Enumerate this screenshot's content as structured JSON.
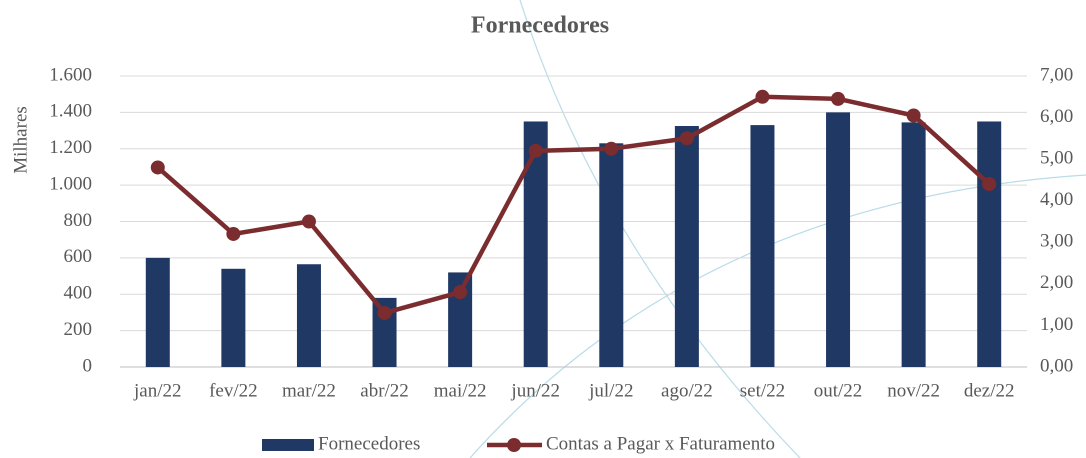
{
  "chart_data": {
    "type": "bar-line",
    "title": "Fornecedores",
    "y_label": "Milhares",
    "categories": [
      "jan/22",
      "fev/22",
      "mar/22",
      "abr/22",
      "mai/22",
      "jun/22",
      "jul/22",
      "ago/22",
      "set/22",
      "out/22",
      "nov/22",
      "dez/22"
    ],
    "series": [
      {
        "name": "Fornecedores",
        "type": "bar",
        "color": "#1f3864",
        "values": [
          600,
          540,
          565,
          380,
          520,
          1350,
          1230,
          1325,
          1330,
          1400,
          1345,
          1350
        ]
      },
      {
        "name": "Contas a Pagar x Faturamento",
        "type": "line",
        "axis": "y2",
        "color": "#7b2c2f",
        "values": [
          4.8,
          3.2,
          3.5,
          1.3,
          1.8,
          5.2,
          5.25,
          5.5,
          6.5,
          6.45,
          6.05,
          4.4
        ]
      }
    ],
    "ylim": [
      0,
      1600
    ],
    "yticks": [
      0,
      200,
      400,
      600,
      800,
      {
        "value": 1000,
        "label": "1.000"
      },
      {
        "value": 1200,
        "label": "1.200"
      },
      {
        "value": 1400,
        "label": "1.400"
      },
      {
        "value": 1600,
        "label": "1.600"
      }
    ],
    "y2lim": [
      0,
      7
    ],
    "y2ticks": [
      {
        "value": 0,
        "label": "0,00"
      },
      {
        "value": 1,
        "label": "1,00"
      },
      {
        "value": 2,
        "label": "2,00"
      },
      {
        "value": 3,
        "label": "3,00"
      },
      {
        "value": 4,
        "label": "4,00"
      },
      {
        "value": 5,
        "label": "5,00"
      },
      {
        "value": 6,
        "label": "6,00"
      },
      {
        "value": 7,
        "label": "7,00"
      }
    ],
    "grid": true,
    "legend": "bottom"
  }
}
